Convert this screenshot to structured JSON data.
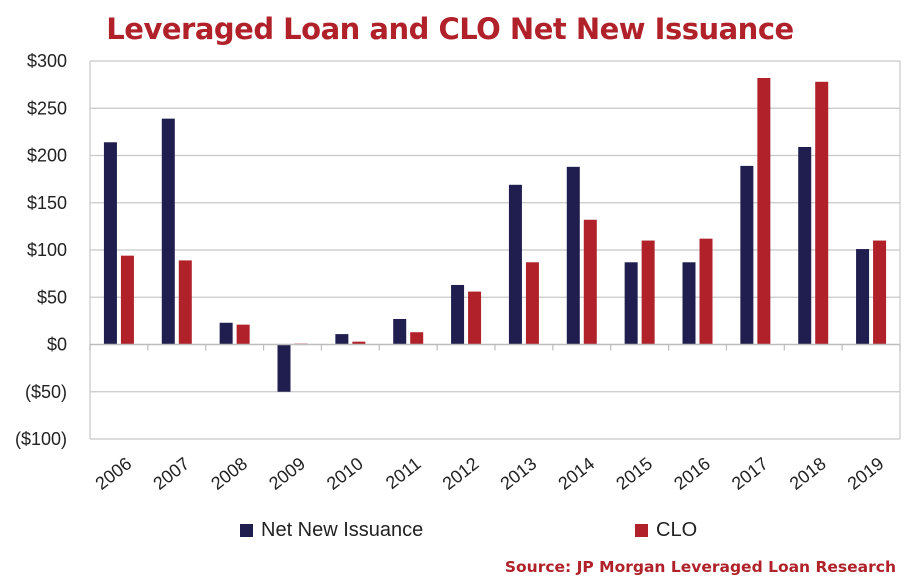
{
  "colors": {
    "net_new_issuance": "#1f1e4f",
    "clo": "#b0212a",
    "title": "#b0212a",
    "source": "#b0212a",
    "grid": "#c8c8c8",
    "axis_text": "#222222"
  },
  "chart_data": {
    "type": "bar",
    "title": "Leveraged Loan and CLO Net New Issuance",
    "source": "Source: JP Morgan Leveraged Loan Research",
    "xlabel": "",
    "ylabel": "",
    "ylim": [
      -100,
      300
    ],
    "ytick_values": [
      300,
      250,
      200,
      150,
      100,
      50,
      0,
      -50,
      -100
    ],
    "ytick_labels": [
      "$300",
      "$250",
      "$200",
      "$150",
      "$100",
      "$50",
      "$0",
      "($50)",
      "($100)"
    ],
    "categories": [
      "2006",
      "2007",
      "2008",
      "2009",
      "2010",
      "2011",
      "2012",
      "2013",
      "2014",
      "2015",
      "2016",
      "2017",
      "2018",
      "2019"
    ],
    "series": [
      {
        "name": "Net New Issuance",
        "values": [
          214,
          239,
          23,
          -50,
          11,
          27,
          63,
          169,
          188,
          87,
          87,
          189,
          209,
          101
        ]
      },
      {
        "name": "CLO",
        "values": [
          94,
          89,
          21,
          1,
          3,
          13,
          56,
          87,
          132,
          110,
          112,
          282,
          278,
          110
        ]
      }
    ],
    "grid": true,
    "legend": "bottom"
  }
}
